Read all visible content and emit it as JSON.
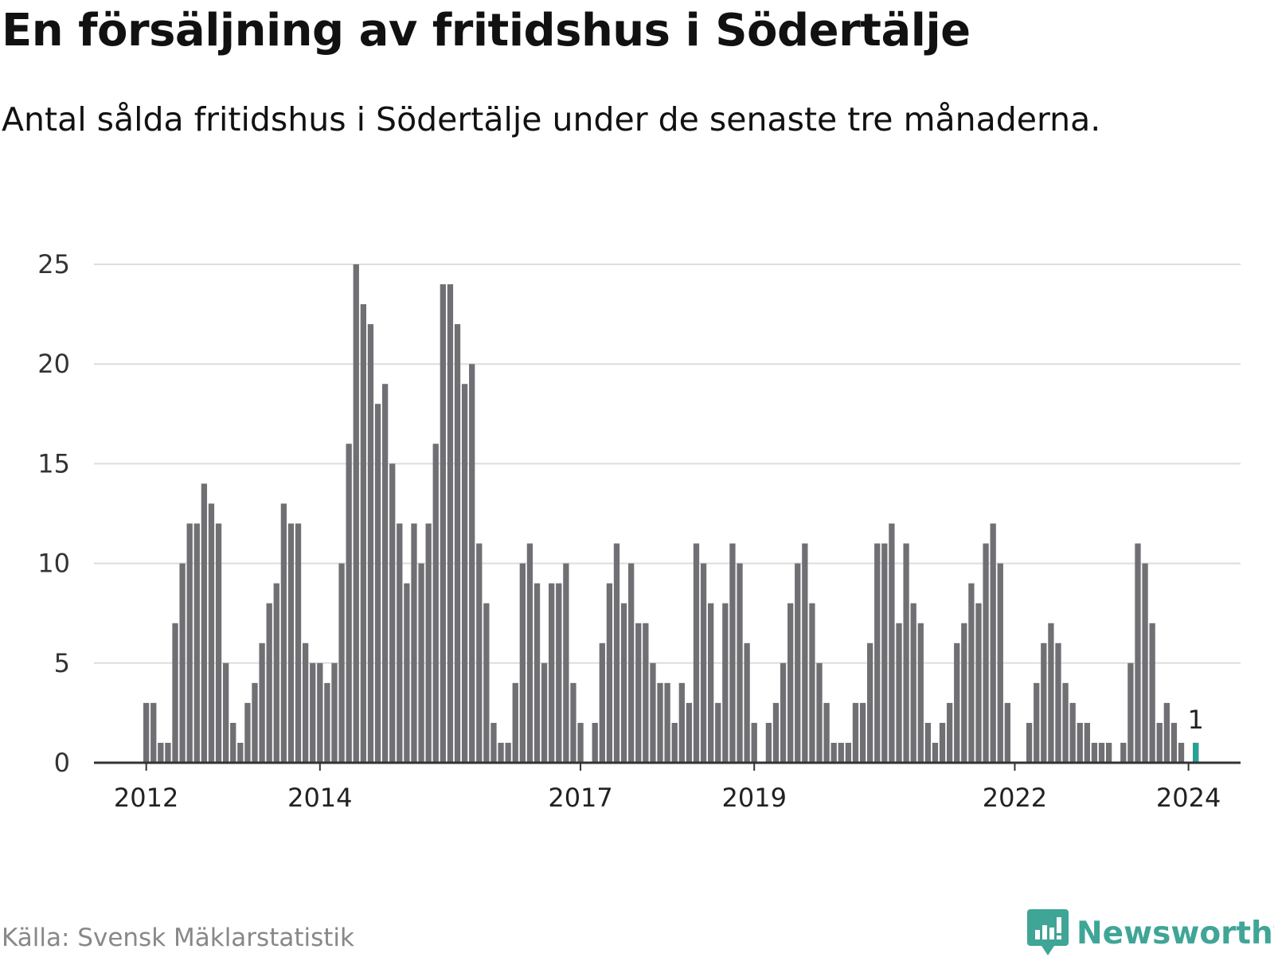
{
  "header": {
    "title": "En försäljning av fritidshus i Södertälje",
    "subtitle": "Antal sålda fritidshus i Södertälje under de senaste tre månaderna."
  },
  "footer": {
    "source": "Källa: Svensk Mäklarstatistik",
    "brand": "Newsworthy"
  },
  "colors": {
    "bar": "#707074",
    "highlight": "#2aa198",
    "grid": "#dddddd",
    "axis": "#333333",
    "brand": "#3fa597"
  },
  "chart_data": {
    "type": "bar",
    "title": "En försäljning av fritidshus i Södertälje",
    "subtitle": "Antal sålda fritidshus i Södertälje under de senaste tre månaderna.",
    "xlabel": "",
    "ylabel": "",
    "ylim": [
      0,
      25
    ],
    "yticks": [
      0,
      5,
      10,
      15,
      20,
      25
    ],
    "grid": true,
    "x_start": "2012-01",
    "xticks": [
      {
        "label": "2012",
        "month": "2012-01"
      },
      {
        "label": "2014",
        "month": "2014-01"
      },
      {
        "label": "2017",
        "month": "2017-01"
      },
      {
        "label": "2019",
        "month": "2019-01"
      },
      {
        "label": "2022",
        "month": "2022-01"
      },
      {
        "label": "2024",
        "month": "2024-01"
      }
    ],
    "values": [
      3,
      3,
      1,
      1,
      7,
      10,
      12,
      12,
      14,
      13,
      12,
      5,
      2,
      1,
      3,
      4,
      6,
      8,
      9,
      13,
      12,
      12,
      6,
      5,
      5,
      4,
      5,
      10,
      16,
      25,
      23,
      22,
      18,
      19,
      15,
      12,
      9,
      12,
      10,
      12,
      16,
      24,
      24,
      22,
      19,
      20,
      11,
      8,
      2,
      1,
      1,
      4,
      10,
      11,
      9,
      5,
      9,
      9,
      10,
      4,
      2,
      0,
      2,
      6,
      9,
      11,
      8,
      10,
      7,
      7,
      5,
      4,
      4,
      2,
      4,
      3,
      11,
      10,
      8,
      3,
      8,
      11,
      10,
      6,
      2,
      0,
      2,
      3,
      5,
      8,
      10,
      11,
      8,
      5,
      3,
      1,
      1,
      1,
      3,
      3,
      6,
      11,
      11,
      12,
      7,
      11,
      8,
      7,
      2,
      1,
      2,
      3,
      6,
      7,
      9,
      8,
      11,
      12,
      10,
      3,
      0,
      0,
      2,
      4,
      6,
      7,
      6,
      4,
      3,
      2,
      2,
      1,
      1,
      1,
      0,
      1,
      5,
      11,
      10,
      7,
      2,
      3,
      2,
      1,
      0,
      1
    ],
    "highlight": {
      "month": "2024-02",
      "value": 1,
      "label": "1"
    }
  }
}
